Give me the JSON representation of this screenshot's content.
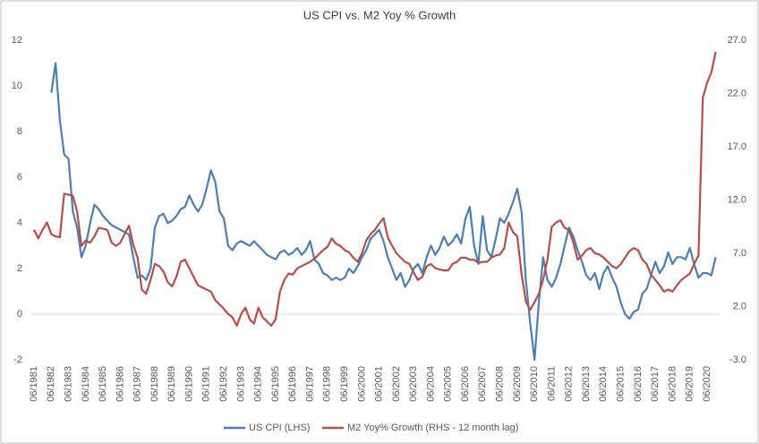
{
  "chart_data": {
    "type": "line",
    "title": "US CPI vs. M2 Yoy % Growth",
    "categories": [
      "06/1981",
      null,
      null,
      null,
      "06/1982",
      null,
      null,
      null,
      "06/1983",
      null,
      null,
      null,
      "06/1984",
      null,
      null,
      null,
      "06/1985",
      null,
      null,
      null,
      "06/1986",
      null,
      null,
      null,
      "06/1987",
      null,
      null,
      null,
      "06/1988",
      null,
      null,
      null,
      "06/1989",
      null,
      null,
      null,
      "06/1990",
      null,
      null,
      null,
      "06/1991",
      null,
      null,
      null,
      "06/1992",
      null,
      null,
      null,
      "06/1993",
      null,
      null,
      null,
      "06/1994",
      null,
      null,
      null,
      "06/1995",
      null,
      null,
      null,
      "06/1996",
      null,
      null,
      null,
      "06/1997",
      null,
      null,
      null,
      "06/1998",
      null,
      null,
      null,
      "06/1999",
      null,
      null,
      null,
      "06/2000",
      null,
      null,
      null,
      "06/2001",
      null,
      null,
      null,
      "06/2002",
      null,
      null,
      null,
      "06/2003",
      null,
      null,
      null,
      "06/2004",
      null,
      null,
      null,
      "06/2005",
      null,
      null,
      null,
      "06/2006",
      null,
      null,
      null,
      "06/2007",
      null,
      null,
      null,
      "06/2008",
      null,
      null,
      null,
      "06/2009",
      null,
      null,
      null,
      "06/2010",
      null,
      null,
      null,
      "06/2011",
      null,
      null,
      null,
      "06/2012",
      null,
      null,
      null,
      "06/2013",
      null,
      null,
      null,
      "06/2014",
      null,
      null,
      null,
      "06/2015",
      null,
      null,
      null,
      "06/2016",
      null,
      null,
      null,
      "06/2017",
      null,
      null,
      null,
      "06/2018",
      null,
      null,
      null,
      "06/2019",
      null,
      null,
      null,
      "06/2020",
      null,
      null
    ],
    "series": [
      {
        "name": "US CPI (LHS)",
        "color": "#4a7ebb",
        "axis": "y",
        "values": [
          null,
          null,
          null,
          null,
          9.7,
          11.0,
          8.5,
          7.0,
          6.8,
          4.5,
          3.8,
          2.5,
          3.0,
          4.0,
          4.8,
          4.6,
          4.3,
          4.1,
          3.9,
          3.8,
          3.7,
          3.6,
          3.5,
          2.5,
          1.6,
          1.7,
          1.5,
          2.0,
          3.8,
          4.3,
          4.4,
          4.0,
          4.1,
          4.3,
          4.6,
          4.7,
          5.2,
          4.8,
          4.5,
          4.8,
          5.5,
          6.3,
          5.8,
          4.5,
          4.2,
          3.0,
          2.8,
          3.1,
          3.2,
          3.1,
          3.0,
          3.2,
          3.0,
          2.8,
          2.6,
          2.5,
          2.4,
          2.7,
          2.8,
          2.6,
          2.7,
          2.9,
          2.6,
          2.8,
          3.2,
          2.4,
          2.2,
          1.8,
          1.7,
          1.5,
          1.6,
          1.5,
          1.6,
          2.0,
          1.8,
          2.1,
          2.5,
          2.8,
          3.3,
          3.5,
          3.7,
          3.2,
          2.5,
          2.0,
          1.5,
          1.8,
          1.2,
          1.5,
          2.0,
          2.2,
          1.8,
          2.5,
          3.0,
          2.6,
          2.9,
          3.4,
          3.0,
          3.2,
          3.5,
          3.1,
          4.2,
          4.7,
          3.0,
          2.2,
          4.3,
          2.8,
          2.5,
          3.3,
          4.2,
          4.0,
          4.4,
          4.9,
          5.5,
          4.5,
          1.5,
          -0.4,
          -2.0,
          0.5,
          2.5,
          1.5,
          1.2,
          1.6,
          2.2,
          3.0,
          3.8,
          3.4,
          2.8,
          2.3,
          1.7,
          1.5,
          1.8,
          1.1,
          1.8,
          2.1,
          1.6,
          1.2,
          0.5,
          0.0,
          -0.2,
          0.1,
          0.2,
          0.9,
          1.1,
          1.7,
          2.3,
          1.8,
          2.1,
          2.7,
          2.2,
          2.5,
          2.5,
          2.4,
          2.9,
          2.2,
          1.6,
          1.8,
          1.8,
          1.7,
          2.5
        ]
      },
      {
        "name": "M2 Yoy% Growth (RHS - 12 month lag)",
        "color": "#be4b48",
        "axis": "y2",
        "values": [
          9.2,
          8.4,
          9.2,
          9.9,
          8.8,
          8.6,
          8.5,
          12.6,
          12.5,
          12.4,
          10.9,
          7.7,
          8.2,
          8.0,
          8.6,
          9.4,
          9.3,
          9.2,
          8.0,
          7.7,
          8.0,
          8.8,
          9.6,
          7.8,
          6.6,
          3.6,
          3.2,
          4.5,
          6.0,
          5.8,
          5.3,
          4.3,
          3.9,
          4.8,
          6.2,
          6.4,
          5.6,
          4.8,
          4.0,
          3.8,
          3.6,
          3.4,
          2.6,
          2.2,
          1.8,
          1.3,
          1.0,
          0.2,
          1.3,
          1.9,
          0.8,
          0.4,
          1.9,
          1.0,
          0.6,
          0.2,
          0.8,
          3.4,
          4.5,
          5.1,
          5.0,
          5.6,
          5.8,
          6.0,
          6.2,
          6.5,
          6.9,
          7.3,
          7.6,
          8.4,
          7.9,
          7.7,
          7.3,
          7.1,
          6.6,
          6.2,
          7.0,
          8.2,
          8.8,
          9.2,
          9.8,
          10.3,
          8.5,
          7.7,
          7.0,
          6.6,
          6.2,
          6.0,
          5.2,
          4.5,
          4.8,
          5.8,
          6.0,
          5.6,
          5.5,
          5.4,
          5.4,
          6.0,
          6.2,
          6.6,
          6.6,
          6.4,
          6.4,
          6.1,
          6.2,
          6.2,
          6.6,
          6.8,
          6.9,
          7.5,
          9.9,
          9.0,
          8.6,
          5.1,
          2.5,
          1.7,
          2.4,
          3.2,
          4.5,
          6.4,
          9.5,
          9.9,
          10.1,
          9.4,
          9.2,
          8.0,
          6.4,
          6.8,
          7.3,
          7.5,
          7.0,
          6.9,
          6.6,
          6.2,
          5.8,
          5.6,
          6.0,
          6.6,
          7.2,
          7.5,
          7.3,
          6.4,
          6.0,
          5.0,
          4.5,
          4.0,
          3.4,
          3.6,
          3.4,
          4.0,
          4.5,
          4.8,
          5.1,
          6.0,
          6.8,
          21.6,
          23.0,
          24.0,
          25.9
        ]
      }
    ],
    "ylim": [
      -2,
      12
    ],
    "yticks": [
      -2,
      0,
      2,
      4,
      6,
      8,
      10,
      12
    ],
    "y2lim": [
      -3,
      27
    ],
    "y2ticks": [
      {
        "value": -3,
        "label": "-3.0"
      },
      {
        "value": 2,
        "label": "2.0"
      },
      {
        "value": 7,
        "label": "7.0"
      },
      {
        "value": 12,
        "label": "12.0"
      },
      {
        "value": 17,
        "label": "17.0"
      },
      {
        "value": 22,
        "label": "22.0"
      },
      {
        "value": 27,
        "label": "27.0"
      }
    ],
    "legend": "bottom"
  }
}
